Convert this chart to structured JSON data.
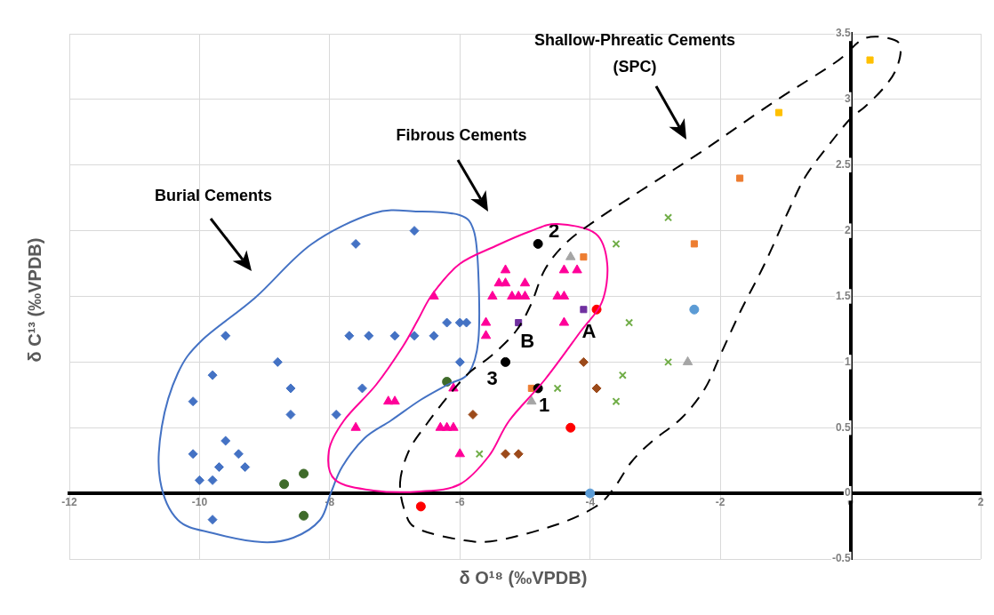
{
  "chart_data": {
    "type": "scatter",
    "xlabel": "δ O¹⁸ (‰VPDB)",
    "ylabel": "δ C¹³ (‰VPDB)",
    "xlim": [
      -12,
      2
    ],
    "xticks": [
      -12,
      -10,
      -8,
      -6,
      -4,
      -2,
      0,
      2
    ],
    "ylim": [
      -0.5,
      3.5
    ],
    "yticks": [
      -0.5,
      0,
      0.5,
      1,
      1.5,
      2,
      2.5,
      3,
      3.5
    ],
    "grid": true,
    "legend": false,
    "series": [
      {
        "color": "#4472c4",
        "marker": "diamond",
        "x": [
          -6.7,
          -7.6,
          -9.6,
          -7.7,
          -7.4,
          -7.0,
          -6.7,
          -8.8,
          -9.8,
          -8.6,
          -7.5,
          -10.1,
          -8.6,
          -7.9,
          -9.6,
          -10.1,
          -9.4,
          -9.7,
          -9.3,
          -10.0,
          -9.8,
          -9.8,
          -6.4,
          -6.2,
          -6.0,
          -5.9,
          -6.0
        ],
        "values": [
          2.0,
          1.9,
          1.2,
          1.2,
          1.2,
          1.2,
          1.2,
          1.0,
          0.9,
          0.8,
          0.8,
          0.7,
          0.6,
          0.6,
          0.4,
          0.3,
          0.3,
          0.2,
          0.2,
          0.1,
          0.1,
          -0.2,
          1.2,
          1.3,
          1.3,
          1.3,
          1.0
        ]
      },
      {
        "color": "#3f6b2a",
        "marker": "circle",
        "x": [
          -8.4,
          -8.7,
          -8.4,
          -6.2
        ],
        "values": [
          0.15,
          0.07,
          -0.17,
          0.85
        ]
      },
      {
        "color": "#ff0099",
        "marker": "triangle",
        "x": [
          -7.1,
          -7.0,
          -7.6,
          -5.3,
          -5.4,
          -5.3,
          -5.0,
          -6.4,
          -5.5,
          -5.2,
          -5.1,
          -5.0,
          -4.4,
          -4.2,
          -4.5,
          -4.4,
          -4.4,
          -5.6,
          -5.6,
          -6.1,
          -6.3,
          -6.2,
          -6.1,
          -6.0
        ],
        "values": [
          0.7,
          0.7,
          0.5,
          1.7,
          1.6,
          1.6,
          1.6,
          1.5,
          1.5,
          1.5,
          1.5,
          1.5,
          1.7,
          1.7,
          1.5,
          1.5,
          1.3,
          1.3,
          1.2,
          0.8,
          0.5,
          0.5,
          0.5,
          0.3
        ]
      },
      {
        "color": "#000000",
        "marker": "circle",
        "x": [
          -4.8,
          -5.3,
          -4.8
        ],
        "values": [
          1.9,
          1.0,
          0.8
        ]
      },
      {
        "color": "#7030a0",
        "marker": "square",
        "x": [
          -5.1,
          -4.1
        ],
        "values": [
          1.3,
          1.4
        ]
      },
      {
        "color": "#a5a5a5",
        "marker": "triangle",
        "x": [
          -4.3,
          -4.9,
          -2.5
        ],
        "values": [
          1.8,
          0.7,
          1.0
        ]
      },
      {
        "color": "#ed7d31",
        "marker": "square",
        "x": [
          -4.1,
          -4.9,
          -2.4,
          -1.7
        ],
        "values": [
          1.8,
          0.8,
          1.9,
          2.4
        ]
      },
      {
        "color": "#ff0000",
        "marker": "circle",
        "x": [
          -3.9,
          -4.3,
          -6.6
        ],
        "values": [
          1.4,
          0.5,
          -0.1
        ]
      },
      {
        "color": "#70ad47",
        "marker": "cross",
        "x": [
          -3.6,
          -3.4,
          -3.5,
          -4.5,
          -3.6,
          -5.7,
          -2.8,
          -2.8
        ],
        "values": [
          1.9,
          1.3,
          0.9,
          0.8,
          0.7,
          0.3,
          2.1,
          1.0
        ]
      },
      {
        "color": "#9c4a1a",
        "marker": "diamond",
        "x": [
          -4.1,
          -3.9,
          -5.8,
          -5.3,
          -5.1
        ],
        "values": [
          1.0,
          0.8,
          0.6,
          0.3,
          0.3
        ]
      },
      {
        "color": "#5b9bd5",
        "marker": "circle",
        "x": [
          -2.4,
          -4.0
        ],
        "values": [
          1.4,
          0.0
        ]
      },
      {
        "color": "#ffc000",
        "marker": "square",
        "x": [
          -1.1,
          0.3
        ],
        "values": [
          2.9,
          3.3
        ]
      }
    ],
    "annotations": [
      "Burial Cements",
      "Fibrous Cements",
      "Shallow-Phreatic Cements (SPC)",
      {
        "text": "2",
        "x": -4.8,
        "y": 1.9
      },
      {
        "text": "3",
        "x": -5.3,
        "y": 1.0
      },
      {
        "text": "1",
        "x": -4.8,
        "y": 0.8
      },
      {
        "text": "B",
        "x": -5.1,
        "y": 1.3
      },
      {
        "text": "A",
        "x": -4.1,
        "y": 1.4
      }
    ]
  }
}
